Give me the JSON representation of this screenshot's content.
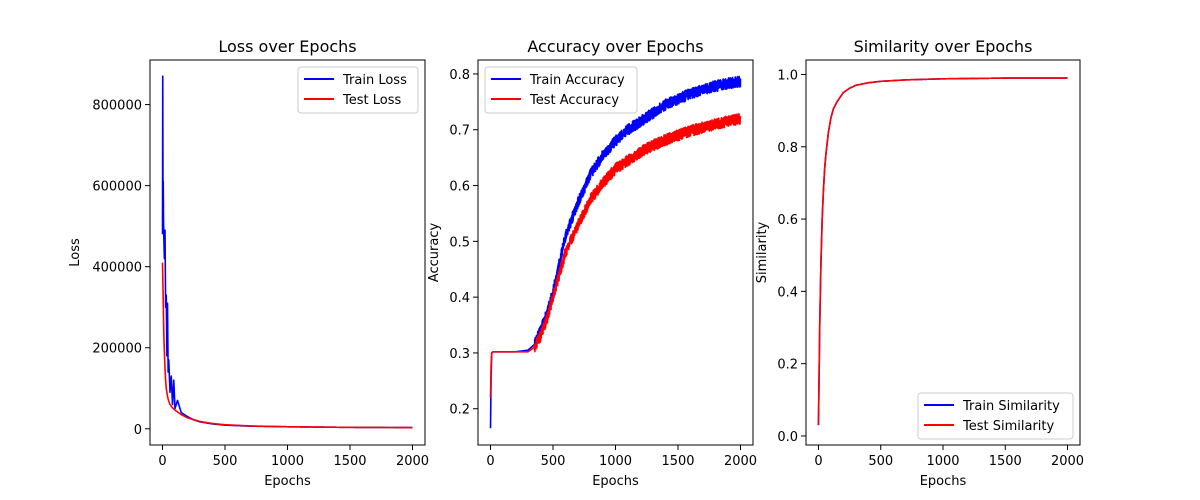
{
  "chart_data": [
    {
      "type": "line",
      "title": "Loss over Epochs",
      "xlabel": "Epochs",
      "ylabel": "Loss",
      "xlim": [
        -100,
        2100
      ],
      "ylim": [
        -40000,
        910000
      ],
      "xticks": [
        0,
        500,
        1000,
        1500,
        2000
      ],
      "yticks": [
        0,
        200000,
        400000,
        600000,
        800000
      ],
      "legend_position": "upper right",
      "series": [
        {
          "name": "Train Loss",
          "color": "#0000ff",
          "x": [
            0,
            2,
            4,
            6,
            8,
            10,
            15,
            20,
            25,
            30,
            35,
            40,
            45,
            50,
            60,
            70,
            80,
            90,
            100,
            120,
            150,
            200,
            250,
            300,
            400,
            500,
            700,
            1000,
            1500,
            2000
          ],
          "y": [
            480000,
            870000,
            560000,
            610000,
            520000,
            480000,
            420000,
            490000,
            300000,
            330000,
            180000,
            310000,
            140000,
            170000,
            90000,
            130000,
            60000,
            120000,
            50000,
            70000,
            40000,
            30000,
            22000,
            17000,
            12000,
            9000,
            6500,
            5000,
            3500,
            3000
          ]
        },
        {
          "name": "Test Loss",
          "color": "#ff0000",
          "x": [
            0,
            5,
            10,
            15,
            20,
            25,
            30,
            40,
            50,
            60,
            80,
            100,
            150,
            200,
            300,
            400,
            500,
            700,
            1000,
            1500,
            2000
          ],
          "y": [
            410000,
            330000,
            240000,
            190000,
            150000,
            120000,
            100000,
            80000,
            68000,
            60000,
            52000,
            46000,
            35000,
            27000,
            18000,
            13000,
            10000,
            7000,
            5000,
            3500,
            3000
          ]
        }
      ]
    },
    {
      "type": "line",
      "title": "Accuracy over Epochs",
      "xlabel": "Epochs",
      "ylabel": "Accuracy",
      "xlim": [
        -100,
        2100
      ],
      "ylim": [
        0.135,
        0.825
      ],
      "xticks": [
        0,
        500,
        1000,
        1500,
        2000
      ],
      "yticks": [
        0.2,
        0.3,
        0.4,
        0.5,
        0.6,
        0.7,
        0.8
      ],
      "legend_position": "upper left",
      "series": [
        {
          "name": "Train Accuracy",
          "color": "#0000ff",
          "x": [
            0,
            5,
            10,
            20,
            50,
            100,
            200,
            300,
            350,
            400,
            450,
            500,
            550,
            600,
            700,
            800,
            900,
            1000,
            1100,
            1200,
            1300,
            1400,
            1500,
            1600,
            1700,
            1800,
            1900,
            2000
          ],
          "y": [
            0.165,
            0.26,
            0.3,
            0.302,
            0.302,
            0.302,
            0.302,
            0.305,
            0.315,
            0.34,
            0.37,
            0.41,
            0.46,
            0.51,
            0.57,
            0.62,
            0.655,
            0.68,
            0.7,
            0.715,
            0.73,
            0.745,
            0.755,
            0.765,
            0.772,
            0.778,
            0.783,
            0.787
          ]
        },
        {
          "name": "Test Accuracy",
          "color": "#ff0000",
          "x": [
            0,
            5,
            10,
            20,
            50,
            100,
            200,
            300,
            350,
            400,
            450,
            500,
            550,
            600,
            700,
            800,
            900,
            1000,
            1100,
            1200,
            1300,
            1400,
            1500,
            1600,
            1700,
            1800,
            1900,
            2000
          ],
          "y": [
            0.22,
            0.28,
            0.3,
            0.302,
            0.302,
            0.302,
            0.302,
            0.302,
            0.31,
            0.33,
            0.36,
            0.4,
            0.44,
            0.48,
            0.53,
            0.575,
            0.605,
            0.63,
            0.645,
            0.66,
            0.672,
            0.682,
            0.69,
            0.698,
            0.704,
            0.71,
            0.715,
            0.72
          ]
        }
      ]
    },
    {
      "type": "line",
      "title": "Similarity over Epochs",
      "xlabel": "Epochs",
      "ylabel": "Similarity",
      "xlim": [
        -100,
        2100
      ],
      "ylim": [
        -0.025,
        1.04
      ],
      "xticks": [
        0,
        500,
        1000,
        1500,
        2000
      ],
      "yticks": [
        0.0,
        0.2,
        0.4,
        0.6,
        0.8,
        1.0
      ],
      "legend_position": "lower right",
      "series": [
        {
          "name": "Train Similarity",
          "color": "#0000ff",
          "x": [
            0,
            10,
            20,
            30,
            40,
            50,
            60,
            80,
            100,
            120,
            150,
            200,
            250,
            300,
            400,
            500,
            700,
            1000,
            1500,
            2000
          ],
          "y": [
            0.03,
            0.3,
            0.48,
            0.6,
            0.68,
            0.74,
            0.78,
            0.84,
            0.88,
            0.905,
            0.925,
            0.95,
            0.962,
            0.97,
            0.977,
            0.981,
            0.985,
            0.988,
            0.99,
            0.99
          ]
        },
        {
          "name": "Test Similarity",
          "color": "#ff0000",
          "x": [
            0,
            10,
            20,
            30,
            40,
            50,
            60,
            80,
            100,
            120,
            150,
            200,
            250,
            300,
            400,
            500,
            700,
            1000,
            1500,
            2000
          ],
          "y": [
            0.03,
            0.3,
            0.48,
            0.6,
            0.68,
            0.74,
            0.78,
            0.84,
            0.88,
            0.905,
            0.925,
            0.95,
            0.962,
            0.97,
            0.977,
            0.981,
            0.985,
            0.988,
            0.99,
            0.99
          ]
        }
      ]
    }
  ]
}
